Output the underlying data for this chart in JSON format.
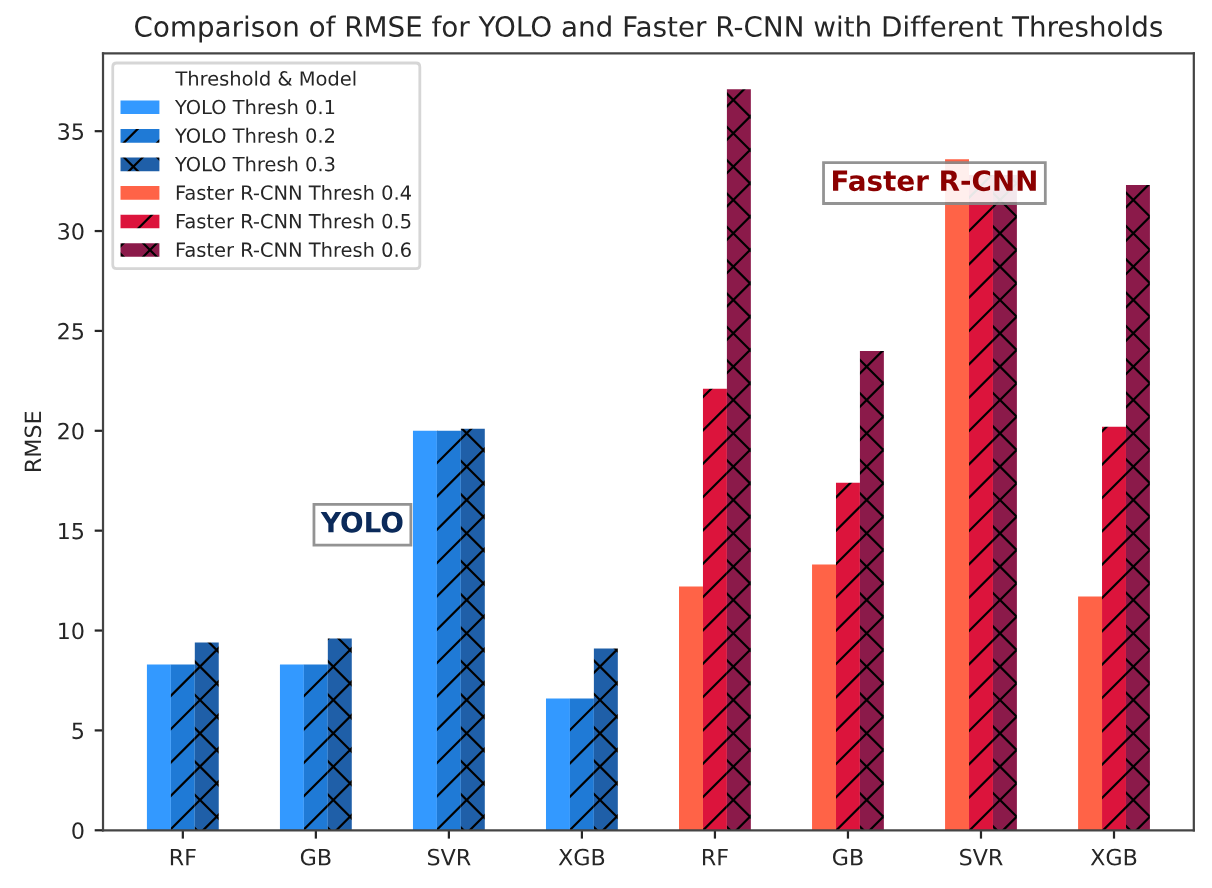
{
  "chart_data": {
    "type": "bar",
    "title": "Comparison of RMSE for YOLO and Faster R-CNN with Different Thresholds",
    "ylabel": "RMSE",
    "legend_title": "Threshold & Model",
    "categories": [
      "RF",
      "GB",
      "SVR",
      "XGB",
      "RF",
      "GB",
      "SVR",
      "XGB"
    ],
    "series": [
      {
        "name": "YOLO Thresh 0.1",
        "color": "#3399ff",
        "values": [
          8.3,
          8.3,
          20.0,
          6.6,
          null,
          null,
          null,
          null
        ]
      },
      {
        "name": "YOLO Thresh 0.2",
        "color": "#1f7ad6",
        "values": [
          8.3,
          8.3,
          20.0,
          6.6,
          null,
          null,
          null,
          null
        ]
      },
      {
        "name": "YOLO Thresh 0.3",
        "color": "#1f5fa8",
        "values": [
          9.4,
          9.6,
          20.1,
          9.1,
          null,
          null,
          null,
          null
        ]
      },
      {
        "name": "Faster R-CNN Thresh 0.4",
        "color": "#ff6347",
        "values": [
          null,
          null,
          null,
          null,
          12.2,
          13.3,
          33.6,
          11.7
        ]
      },
      {
        "name": "Faster R-CNN Thresh 0.5",
        "color": "#dc143c",
        "values": [
          null,
          null,
          null,
          null,
          22.1,
          17.4,
          32.8,
          20.2
        ]
      },
      {
        "name": "Faster R-CNN Thresh 0.6",
        "color": "#8b1a4a",
        "values": [
          null,
          null,
          null,
          null,
          37.1,
          24.0,
          32.8,
          32.3
        ]
      }
    ],
    "ylim": [
      0,
      38.9
    ],
    "yticks": [
      0,
      5,
      10,
      15,
      20,
      25,
      30,
      35
    ],
    "grid": false,
    "legend": "top left",
    "annotations": [
      "YOLO",
      "Faster R-CNN"
    ]
  }
}
